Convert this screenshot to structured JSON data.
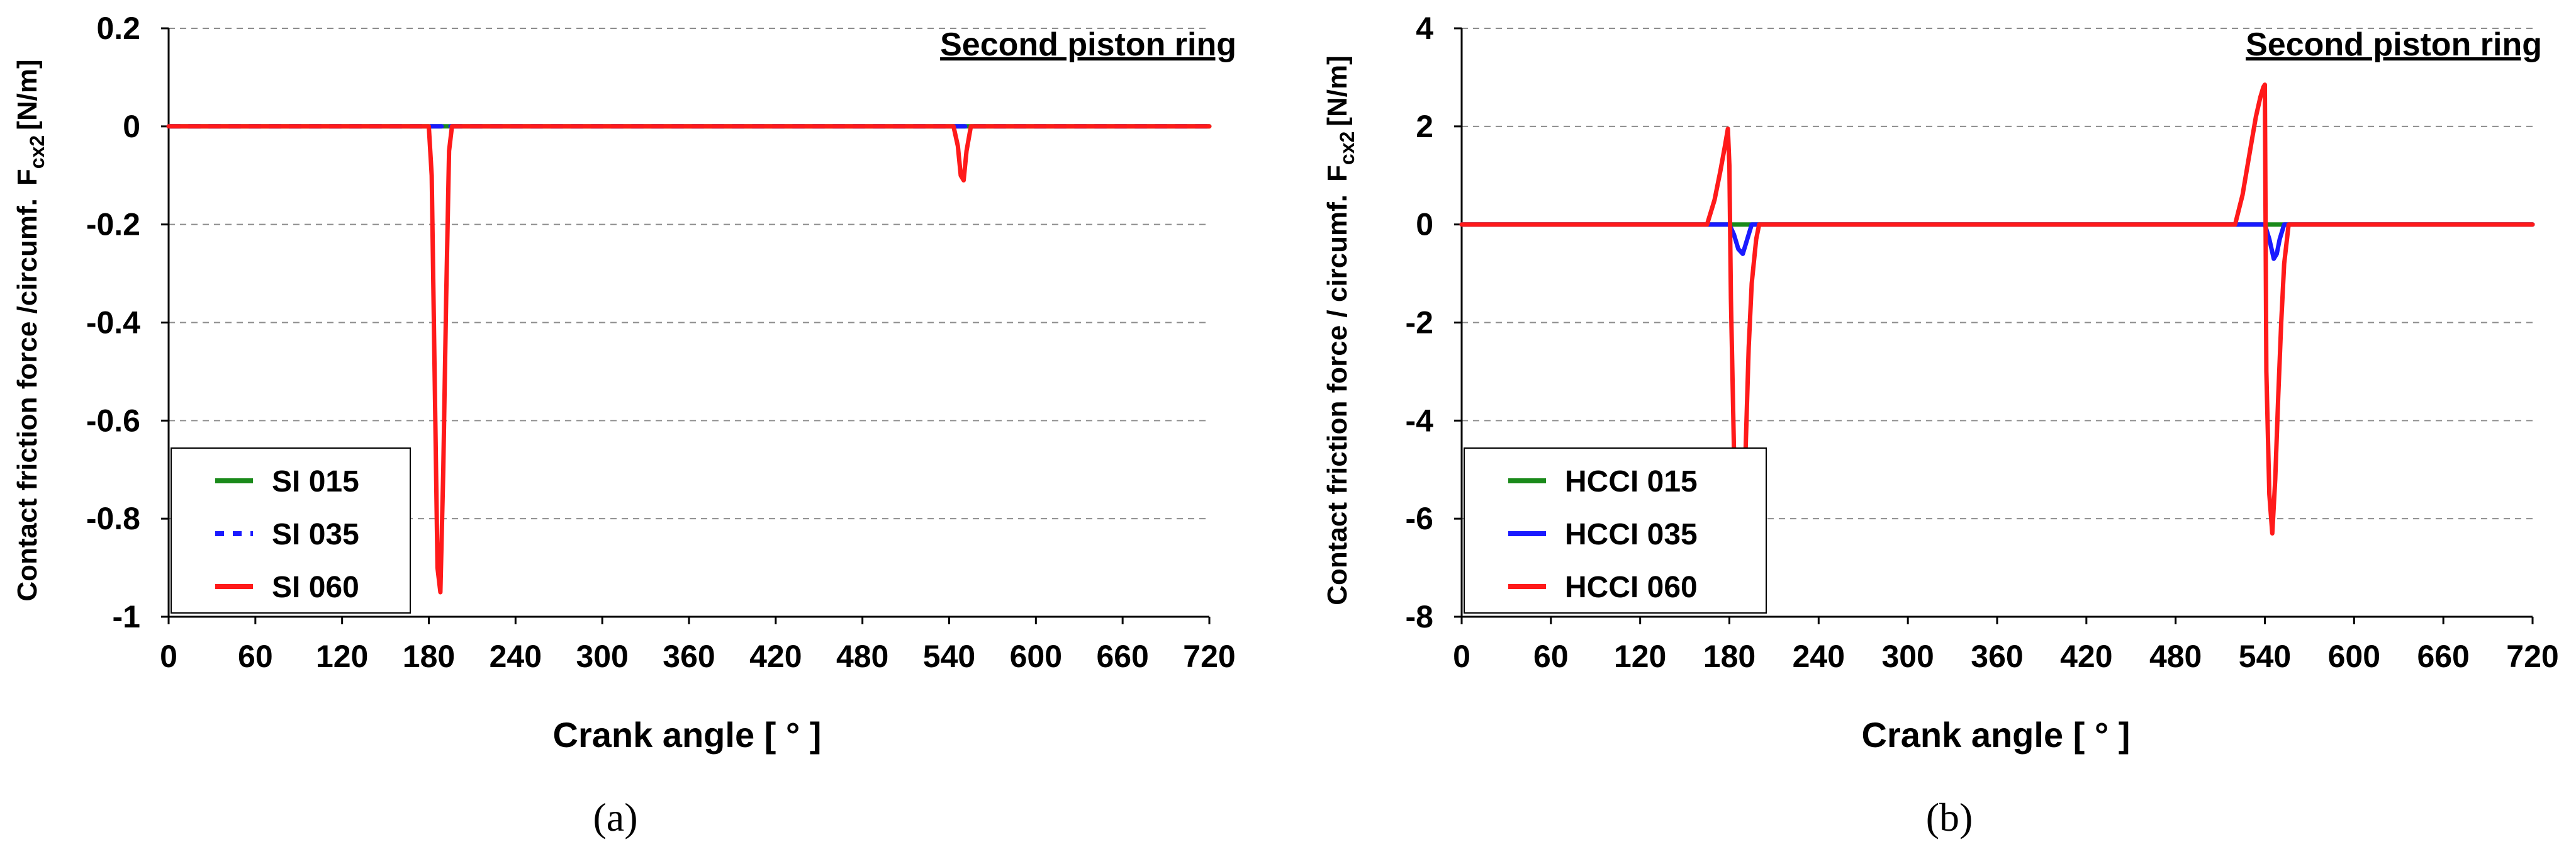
{
  "chart_data": [
    {
      "type": "line",
      "panel_label": "(a)",
      "annotation": "Second piston ring",
      "xlabel": "Crank angle [ ° ]",
      "ylabel_main": "Contact friction force /circumf.",
      "ylabel_symbol": "F",
      "ylabel_sub": "cx2",
      "ylabel_unit": "[N/m]",
      "xlim": [
        0,
        720
      ],
      "ylim": [
        -1,
        0.2
      ],
      "x_ticks": [
        0,
        60,
        120,
        180,
        240,
        300,
        360,
        420,
        480,
        540,
        600,
        660,
        720
      ],
      "y_ticks": [
        -1,
        -0.8,
        -0.6,
        -0.4,
        -0.2,
        0,
        0.2
      ],
      "y_tick_labels": [
        "-1",
        "-0.8",
        "-0.6",
        "-0.4",
        "-0.2",
        "0",
        "0.2"
      ],
      "grid": "horizontal dashed",
      "legend_position": "bottom-left",
      "series": [
        {
          "name": "SI 015",
          "color": "#1a8a1a",
          "dash": "solid",
          "x": [
            0,
            720
          ],
          "y": [
            0,
            0
          ]
        },
        {
          "name": "SI 035",
          "color": "#1a1aff",
          "dash": "dashed",
          "x": [
            0,
            720
          ],
          "y": [
            0,
            0
          ]
        },
        {
          "name": "SI 060",
          "color": "#ff1a1a",
          "dash": "solid",
          "x": [
            0,
            180,
            182,
            184,
            186,
            188,
            190,
            192,
            194,
            196,
            540,
            543,
            546,
            548,
            550,
            552,
            555,
            720
          ],
          "y": [
            0,
            0,
            -0.1,
            -0.5,
            -0.9,
            -0.95,
            -0.7,
            -0.35,
            -0.05,
            0,
            0,
            0,
            -0.04,
            -0.1,
            -0.11,
            -0.05,
            0,
            0
          ]
        }
      ]
    },
    {
      "type": "line",
      "panel_label": "(b)",
      "annotation": "Second piston ring",
      "xlabel": "Crank angle [ ° ]",
      "ylabel_main": "Contact friction force / circumf.",
      "ylabel_symbol": "F",
      "ylabel_sub": "cx2",
      "ylabel_unit": "[N/m]",
      "xlim": [
        0,
        720
      ],
      "ylim": [
        -8,
        4
      ],
      "x_ticks": [
        0,
        60,
        120,
        180,
        240,
        300,
        360,
        420,
        480,
        540,
        600,
        660,
        720
      ],
      "y_ticks": [
        -8,
        -6,
        -4,
        -2,
        0,
        2,
        4
      ],
      "y_tick_labels": [
        "-8",
        "-6",
        "-4",
        "-2",
        "0",
        "2",
        "4"
      ],
      "grid": "horizontal dashed",
      "legend_position": "bottom-left",
      "series": [
        {
          "name": "HCCI 015",
          "color": "#1a8a1a",
          "dash": "solid",
          "x": [
            0,
            720
          ],
          "y": [
            0,
            0
          ]
        },
        {
          "name": "HCCI 035",
          "color": "#1a1aff",
          "dash": "solid",
          "x": [
            0,
            180,
            183,
            186,
            189,
            192,
            195,
            540,
            543,
            546,
            548,
            550,
            553,
            720
          ],
          "y": [
            0,
            0,
            -0.2,
            -0.5,
            -0.6,
            -0.3,
            0,
            0,
            -0.3,
            -0.7,
            -0.6,
            -0.3,
            0,
            0
          ]
        },
        {
          "name": "HCCI 060",
          "color": "#ff1a1a",
          "dash": "solid",
          "x": [
            0,
            165,
            170,
            174,
            177,
            179,
            180,
            181,
            183,
            185,
            187,
            189,
            191,
            193,
            195,
            198,
            200,
            520,
            525,
            530,
            534,
            537,
            539,
            540,
            541,
            543,
            545,
            547,
            549,
            551,
            553,
            556,
            720
          ],
          "y": [
            0,
            0,
            0.5,
            1.1,
            1.6,
            1.95,
            1.2,
            -1.5,
            -4.5,
            -6.8,
            -7.3,
            -6.5,
            -4.5,
            -2.5,
            -1.2,
            -0.3,
            0,
            0,
            0.6,
            1.5,
            2.2,
            2.6,
            2.8,
            2.85,
            -3.0,
            -5.5,
            -6.3,
            -5.2,
            -3.5,
            -2.0,
            -0.8,
            0,
            0
          ]
        }
      ]
    }
  ]
}
